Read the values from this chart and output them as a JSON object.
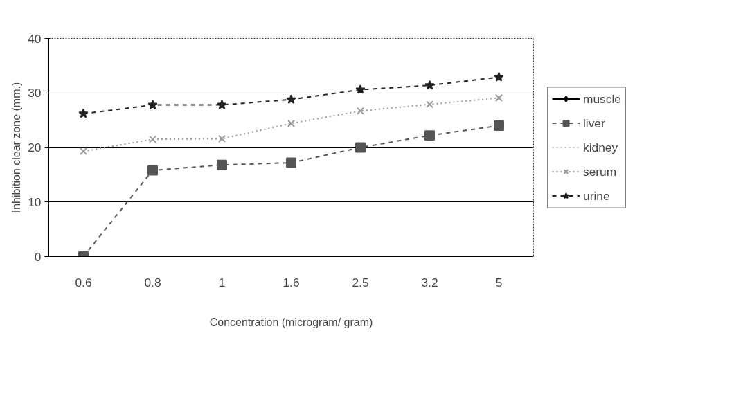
{
  "chart_data": {
    "type": "line",
    "xlabel": "Concentration (microgram/ gram)",
    "ylabel": "Inhibition clear zone (mm.)",
    "categories": [
      "0.6",
      "0.8",
      "1",
      "1.6",
      "2.5",
      "3.2",
      "5"
    ],
    "series": [
      {
        "name": "muscle",
        "color": "#000000",
        "marker": "diamond",
        "line_style": "solid",
        "values": [
          null,
          null,
          null,
          null,
          null,
          null,
          null
        ]
      },
      {
        "name": "liver",
        "color": "#555555",
        "marker": "square",
        "line_style": "dashed",
        "values": [
          0,
          15.8,
          16.8,
          17.2,
          20,
          22.2,
          24
        ]
      },
      {
        "name": "kidney",
        "color": "#bbbbbb",
        "marker": "none",
        "line_style": "dotted",
        "values": [
          null,
          null,
          null,
          null,
          null,
          null,
          null
        ]
      },
      {
        "name": "serum",
        "color": "#999999",
        "marker": "cross",
        "line_style": "dotted",
        "values": [
          19.3,
          21.5,
          21.6,
          24.4,
          26.7,
          27.9,
          29.1
        ]
      },
      {
        "name": "urine",
        "color": "#222222",
        "marker": "star",
        "line_style": "dashed",
        "values": [
          26.2,
          27.8,
          27.8,
          28.8,
          30.6,
          31.4,
          32.9
        ]
      }
    ],
    "ylim": [
      0,
      40
    ],
    "yticks": [
      0,
      10,
      20,
      30,
      40
    ],
    "grid": "y",
    "legend": "right"
  }
}
